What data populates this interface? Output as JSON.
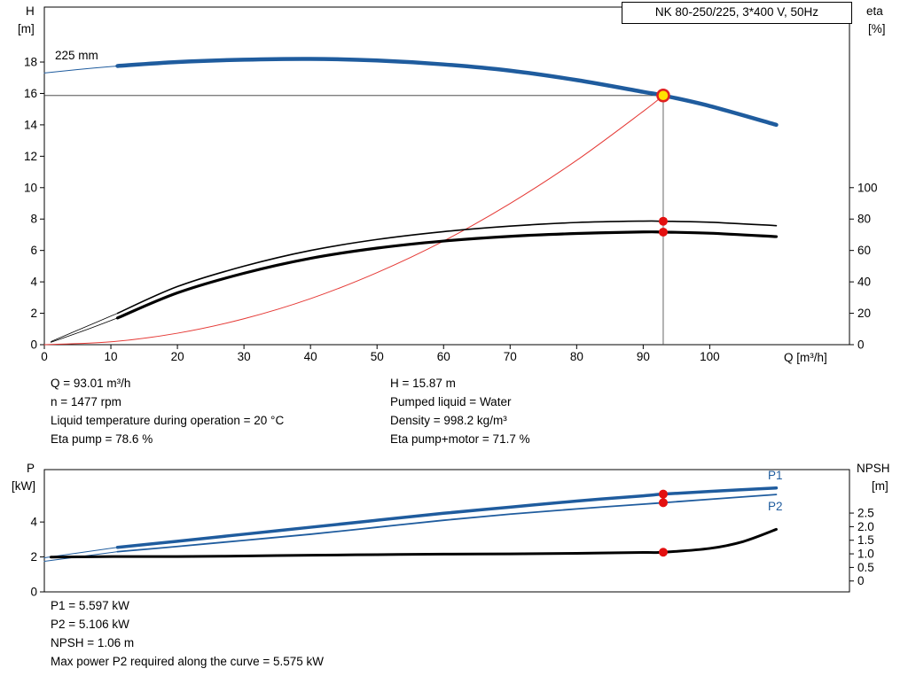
{
  "title_box": "NK 80-250/225, 3*400 V, 50Hz",
  "labels": {
    "p1": "P1",
    "p2": "P2",
    "impeller": "225 mm"
  },
  "colors": {
    "curve_blue": "#1f5c9e",
    "curve_black": "#000000",
    "system_red": "#e53935",
    "duty_fill": "#ffe000",
    "duty_ring": "#e02020",
    "dot_red": "#e31010"
  },
  "top_info": {
    "left": [
      "Q = 93.01 m³/h",
      "n = 1477 rpm",
      "Liquid temperature during operation = 20 °C",
      "Eta pump = 78.6 %"
    ],
    "right": [
      "H = 15.87 m",
      "Pumped liquid = Water",
      "Density = 998.2 kg/m³",
      "Eta pump+motor = 71.7 %"
    ]
  },
  "bottom_info": [
    "P1 = 5.597 kW",
    "P2 = 5.106 kW",
    "NPSH = 1.06 m",
    "Max power P2 required along the curve = 5.575 kW"
  ],
  "chart_data": [
    {
      "name": "head-efficiency-chart",
      "type": "line",
      "title": "NK 80-250/225, 3*400 V, 50Hz",
      "x_label": "Q [m³/h]",
      "y_left_label": [
        "H",
        "[m]"
      ],
      "y_right_label": [
        "eta",
        "[%]"
      ],
      "x_range": [
        0,
        121
      ],
      "left_range": [
        0,
        21.5
      ],
      "right_range": [
        0,
        215
      ],
      "x_ticks": [
        [
          0,
          "0"
        ],
        [
          10,
          "10"
        ],
        [
          20,
          "20"
        ],
        [
          30,
          "30"
        ],
        [
          40,
          "40"
        ],
        [
          50,
          "50"
        ],
        [
          60,
          "60"
        ],
        [
          70,
          "70"
        ],
        [
          80,
          "80"
        ],
        [
          90,
          "90"
        ],
        [
          100,
          "100"
        ]
      ],
      "left_ticks": [
        [
          0,
          "0"
        ],
        [
          2,
          "2"
        ],
        [
          4,
          "4"
        ],
        [
          6,
          "6"
        ],
        [
          8,
          "8"
        ],
        [
          10,
          "10"
        ],
        [
          12,
          "12"
        ],
        [
          14,
          "14"
        ],
        [
          16,
          "16"
        ],
        [
          18,
          "18"
        ]
      ],
      "right_ticks": [
        [
          0,
          "0"
        ],
        [
          20,
          "20"
        ],
        [
          40,
          "40"
        ],
        [
          60,
          "60"
        ],
        [
          80,
          "80"
        ],
        [
          100,
          "100"
        ]
      ],
      "duty_point": {
        "q": 93.01,
        "h": 15.87,
        "eta_pump": 78.6,
        "eta_pump_motor": 71.7
      },
      "guides": [
        {
          "type": "h",
          "y": 15.87,
          "x1": 0,
          "x2": 93.01
        },
        {
          "type": "v",
          "x": 93.01,
          "y1": 0,
          "y2": 15.87
        }
      ],
      "series": [
        {
          "name": "head-curve-lead-in",
          "axis": "left",
          "color": "#1f5c9e",
          "width": 1,
          "points": [
            [
              0,
              17.3
            ],
            [
              5,
              17.52
            ],
            [
              11,
              17.75
            ]
          ]
        },
        {
          "name": "head-curve-225mm",
          "axis": "left",
          "color": "#1f5c9e",
          "width": 4.5,
          "points": [
            [
              11,
              17.75
            ],
            [
              20,
              18.0
            ],
            [
              30,
              18.15
            ],
            [
              40,
              18.2
            ],
            [
              50,
              18.1
            ],
            [
              60,
              17.85
            ],
            [
              70,
              17.45
            ],
            [
              80,
              16.85
            ],
            [
              90,
              16.1
            ],
            [
              93.01,
              15.87
            ],
            [
              100,
              15.2
            ],
            [
              110,
              14.0
            ]
          ]
        },
        {
          "name": "system-curve",
          "axis": "left",
          "color": "#e53935",
          "width": 1,
          "points": [
            [
              0,
              0
            ],
            [
              10,
              0.18
            ],
            [
              20,
              0.73
            ],
            [
              30,
              1.65
            ],
            [
              40,
              2.93
            ],
            [
              50,
              4.59
            ],
            [
              60,
              6.6
            ],
            [
              70,
              8.99
            ],
            [
              80,
              11.74
            ],
            [
              90,
              14.86
            ],
            [
              93.01,
              15.87
            ]
          ]
        },
        {
          "name": "eta-pump-lead-in",
          "axis": "right",
          "color": "#000000",
          "width": 0.8,
          "points": [
            [
              1,
              2
            ],
            [
              6,
              11
            ],
            [
              11,
              20
            ]
          ]
        },
        {
          "name": "eta-pump-curve",
          "axis": "right",
          "color": "#000000",
          "width": 1.6,
          "points": [
            [
              11,
              20
            ],
            [
              20,
              37
            ],
            [
              30,
              50
            ],
            [
              40,
              60
            ],
            [
              50,
              67
            ],
            [
              60,
              72
            ],
            [
              70,
              75.5
            ],
            [
              80,
              77.8
            ],
            [
              90,
              78.7
            ],
            [
              93.01,
              78.6
            ],
            [
              100,
              78
            ],
            [
              110,
              75.8
            ]
          ]
        },
        {
          "name": "eta-pump-motor-lead-in",
          "axis": "right",
          "color": "#000000",
          "width": 0.8,
          "points": [
            [
              1,
              1.5
            ],
            [
              6,
              9
            ],
            [
              11,
              17
            ]
          ]
        },
        {
          "name": "eta-pump-motor-curve",
          "axis": "right",
          "color": "#000000",
          "width": 3.2,
          "points": [
            [
              11,
              17
            ],
            [
              20,
              33
            ],
            [
              30,
              45.5
            ],
            [
              40,
              55
            ],
            [
              50,
              61.5
            ],
            [
              60,
              66
            ],
            [
              70,
              69
            ],
            [
              80,
              70.8
            ],
            [
              90,
              71.8
            ],
            [
              93.01,
              71.7
            ],
            [
              100,
              71
            ],
            [
              110,
              68.8
            ]
          ]
        }
      ],
      "markers": [
        {
          "name": "duty-point-marker",
          "type": "duty",
          "x": 93.01,
          "y": 15.87,
          "axis": "left",
          "fill": "#ffe000",
          "stroke": "#e02020"
        },
        {
          "name": "eta-pump-duty-dot",
          "type": "dot",
          "x": 93.01,
          "y": 78.6,
          "axis": "right",
          "fill": "#e31010"
        },
        {
          "name": "eta-pump-motor-duty-dot",
          "type": "dot",
          "x": 93.01,
          "y": 71.7,
          "axis": "right",
          "fill": "#e31010"
        }
      ]
    },
    {
      "name": "power-npsh-chart",
      "type": "line",
      "x_label": "",
      "y_left_label": [
        "P",
        "[kW]"
      ],
      "y_right_label": [
        "NPSH",
        "[m]"
      ],
      "x_range": [
        0,
        121
      ],
      "left_range": [
        0,
        7.0
      ],
      "right_range": [
        -0.4,
        4.1
      ],
      "x_ticks": [],
      "left_ticks": [
        [
          0,
          "0"
        ],
        [
          2,
          "2"
        ],
        [
          4,
          "4"
        ]
      ],
      "right_ticks": [
        [
          0,
          "0"
        ],
        [
          0.5,
          "0.5"
        ],
        [
          1,
          "1.0"
        ],
        [
          1.5,
          "1.5"
        ],
        [
          2,
          "2.0"
        ],
        [
          2.5,
          "2.5"
        ]
      ],
      "duty_point": {
        "q": 93.01,
        "p1": 5.597,
        "p2": 5.106,
        "npsh": 1.06
      },
      "guides": [],
      "series": [
        {
          "name": "p1-lead-in",
          "axis": "left",
          "color": "#1f5c9e",
          "width": 1,
          "points": [
            [
              0,
              1.95
            ],
            [
              11,
              2.55
            ]
          ]
        },
        {
          "name": "p1-curve",
          "axis": "left",
          "color": "#1f5c9e",
          "width": 3.5,
          "points": [
            [
              11,
              2.55
            ],
            [
              20,
              2.9
            ],
            [
              30,
              3.3
            ],
            [
              40,
              3.7
            ],
            [
              50,
              4.1
            ],
            [
              60,
              4.5
            ],
            [
              70,
              4.85
            ],
            [
              80,
              5.2
            ],
            [
              90,
              5.5
            ],
            [
              93.01,
              5.597
            ],
            [
              100,
              5.75
            ],
            [
              110,
              5.95
            ]
          ]
        },
        {
          "name": "p2-lead-in",
          "axis": "left",
          "color": "#1f5c9e",
          "width": 1,
          "points": [
            [
              0,
              1.75
            ],
            [
              11,
              2.3
            ]
          ]
        },
        {
          "name": "p2-curve",
          "axis": "left",
          "color": "#1f5c9e",
          "width": 1.8,
          "points": [
            [
              11,
              2.3
            ],
            [
              20,
              2.6
            ],
            [
              30,
              2.95
            ],
            [
              40,
              3.3
            ],
            [
              50,
              3.7
            ],
            [
              60,
              4.1
            ],
            [
              70,
              4.45
            ],
            [
              80,
              4.75
            ],
            [
              90,
              5.02
            ],
            [
              93.01,
              5.106
            ],
            [
              100,
              5.3
            ],
            [
              110,
              5.575
            ]
          ]
        },
        {
          "name": "npsh-curve",
          "axis": "right",
          "color": "#000000",
          "width": 3,
          "points": [
            [
              1,
              0.88
            ],
            [
              11,
              0.9
            ],
            [
              20,
              0.9
            ],
            [
              30,
              0.92
            ],
            [
              40,
              0.95
            ],
            [
              50,
              0.97
            ],
            [
              60,
              0.99
            ],
            [
              70,
              1.0
            ],
            [
              80,
              1.02
            ],
            [
              90,
              1.05
            ],
            [
              93.01,
              1.06
            ],
            [
              100,
              1.2
            ],
            [
              105,
              1.45
            ],
            [
              110,
              1.9
            ]
          ]
        }
      ],
      "markers": [
        {
          "name": "p1-duty-dot",
          "type": "dot",
          "x": 93.01,
          "y": 5.597,
          "axis": "left",
          "fill": "#e31010"
        },
        {
          "name": "p2-duty-dot",
          "type": "dot",
          "x": 93.01,
          "y": 5.106,
          "axis": "left",
          "fill": "#e31010"
        },
        {
          "name": "npsh-duty-dot",
          "type": "dot",
          "x": 93.01,
          "y": 1.06,
          "axis": "right",
          "fill": "#e31010"
        }
      ]
    }
  ]
}
